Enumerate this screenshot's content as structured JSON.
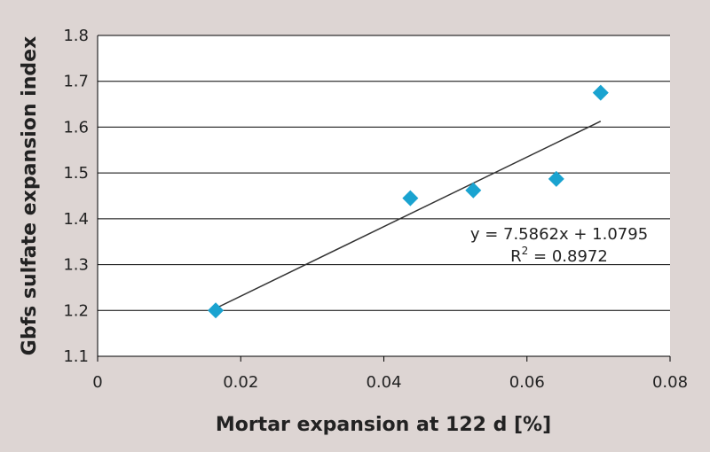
{
  "chart_data": {
    "type": "scatter",
    "title": "",
    "xlabel": "Mortar expansion at 122 d [%]",
    "ylabel": "Gbfs sulfate expansion index",
    "xlim": [
      0,
      0.08
    ],
    "ylim": [
      1.1,
      1.8
    ],
    "x_ticks": [
      "0",
      "0.02",
      "0.04",
      "0.06",
      "0.08"
    ],
    "y_ticks": [
      "1.1",
      "1.2",
      "1.3",
      "1.4",
      "1.5",
      "1.6",
      "1.7",
      "1.8"
    ],
    "grid": "horizontal",
    "series": [
      {
        "x": [
          0.0165,
          0.0437,
          0.0525,
          0.0641,
          0.0703
        ],
        "y": [
          1.2,
          1.445,
          1.462,
          1.487,
          1.675
        ]
      }
    ],
    "trendline": {
      "type": "linear",
      "slope": 7.5862,
      "intercept": 1.0795,
      "x_range": [
        0.0165,
        0.0703
      ],
      "equation": "y = 7.5862x + 1.0795",
      "r2_label": "R",
      "r2_sup": "2",
      "r2_value": " = 0.8972"
    },
    "colors": {
      "background": "#ddd5d3",
      "plot_area": "#ffffff",
      "marker": "#1aa3d0",
      "grid": "#000000",
      "trendline": "#333333"
    }
  }
}
